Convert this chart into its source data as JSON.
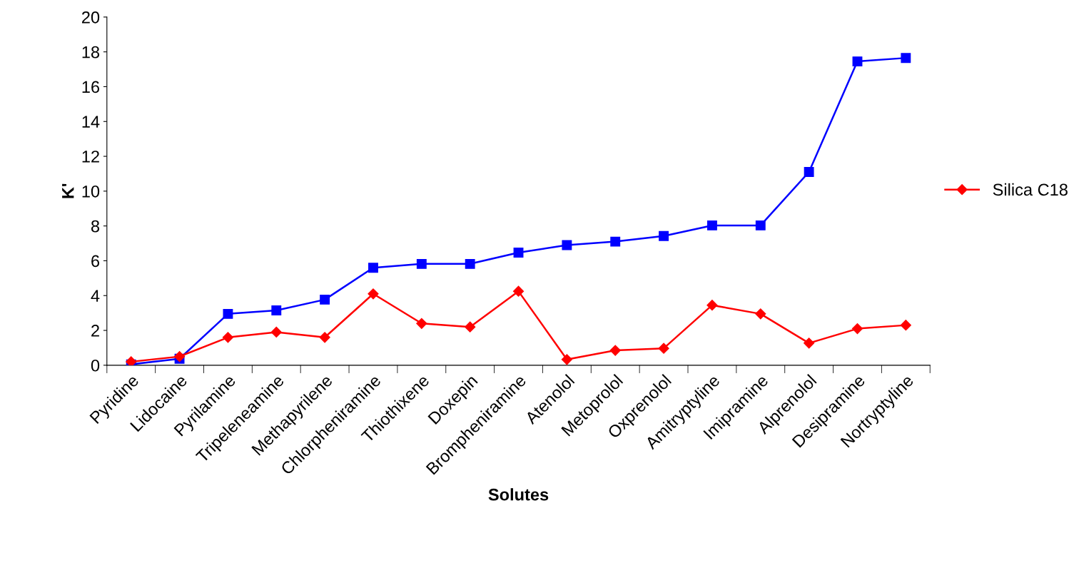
{
  "chart_data": {
    "type": "line",
    "xlabel": "Solutes",
    "ylabel": "K'",
    "categories": [
      "Pyridine",
      "Lidocaine",
      "Pyrilamine",
      "Tripeleneamine",
      "Methapyrilene",
      "Chlorpheniramine",
      "Thiothixene",
      "Doxepin",
      "Brompheniramine",
      "Atenolol",
      "Metoprolol",
      "Oxprenolol",
      "Amitryptyline",
      "Imipramine",
      "Alprenolol",
      "Desipramine",
      "Nortryptyline"
    ],
    "series": [
      {
        "name": "Silica C18",
        "color": "#ff0000",
        "marker": "diamond",
        "values": [
          0.2,
          0.5,
          1.6,
          1.9,
          1.6,
          4.1,
          2.4,
          2.2,
          4.25,
          0.33,
          0.85,
          0.97,
          3.45,
          2.95,
          1.27,
          2.1,
          2.3
        ]
      },
      {
        "color": "#0000ff",
        "marker": "square",
        "values": [
          0.05,
          0.37,
          2.95,
          3.15,
          3.77,
          5.6,
          5.82,
          5.82,
          6.47,
          6.9,
          7.1,
          7.42,
          8.03,
          8.03,
          11.1,
          17.45,
          17.65
        ]
      }
    ],
    "ylim": [
      0,
      20
    ],
    "yticks": [
      0,
      2,
      4,
      6,
      8,
      10,
      12,
      14,
      16,
      18,
      20
    ],
    "grid": false,
    "legend": "right",
    "line_style": "solid"
  }
}
